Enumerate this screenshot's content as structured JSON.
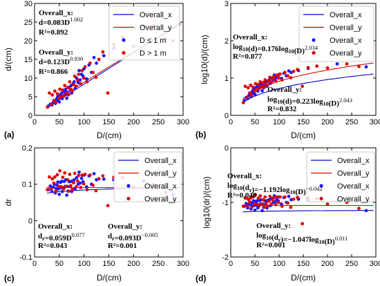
{
  "chart_data": [
    {
      "type": "scatter",
      "panel_label": "(a)",
      "xlabel": "D/(cm)",
      "ylabel": "d/(cm)",
      "xlim": [
        0,
        300
      ],
      "ylim": [
        0,
        30
      ],
      "xticks": [
        "0",
        "50",
        "100",
        "150",
        "200",
        "250",
        "300"
      ],
      "yticks": [
        "0",
        "5",
        "10",
        "15",
        "20",
        "25",
        "30"
      ],
      "legend": {
        "placement": "top-right",
        "entries": [
          "Overall_x",
          "Overall_y",
          "D ≤ 1 m",
          "D > 1 m"
        ]
      },
      "annotations": [
        {
          "lines": [
            {
              "text": "Overall_x:"
            },
            {
              "text": "d=0.083D",
              "sup": "1.002"
            },
            {
              "text": "R²=0.892"
            }
          ]
        },
        {
          "lines": [
            {
              "text": "Overall_y:"
            },
            {
              "text": "d=0.123D",
              "sup": "0.930"
            },
            {
              "text": "R²=0.866"
            }
          ]
        }
      ],
      "fit_lines": [
        {
          "name": "Overall_x",
          "color": "#0000cc",
          "model": "power",
          "a": 0.083,
          "b": 1.002
        },
        {
          "name": "Overall_y",
          "color": "#dd0000",
          "model": "power",
          "a": 0.123,
          "b": 0.93
        }
      ],
      "series": [
        {
          "name": "D ≤ 1 m",
          "color": "#1a1aff",
          "x": [
            28,
            32,
            35,
            38,
            40,
            42,
            44,
            45,
            47,
            48,
            50,
            52,
            53,
            55,
            56,
            58,
            60,
            62,
            63,
            65,
            66,
            68,
            70,
            72,
            74,
            75,
            78,
            80,
            82,
            85,
            88,
            90,
            92,
            95,
            98,
            100,
            105,
            110,
            115,
            120,
            125,
            140,
            160,
            220,
            280
          ],
          "y": [
            2.5,
            3.0,
            2.8,
            3.5,
            4.0,
            3.2,
            3.8,
            4.5,
            5.0,
            4.2,
            3.6,
            5.5,
            4.8,
            6.0,
            4.5,
            5.2,
            6.5,
            5.8,
            7.0,
            4.6,
            6.2,
            5.5,
            7.5,
            6.8,
            8.0,
            6.0,
            8.5,
            9.0,
            7.2,
            10.0,
            8.8,
            12.0,
            9.5,
            11.0,
            10.5,
            12.5,
            9.8,
            13.5,
            11.5,
            15.5,
            14.0,
            16.0,
            18.0,
            24.0,
            20.0
          ]
        },
        {
          "name": "D > 1 m",
          "color": "#e00000",
          "x": [
            26,
            30,
            34,
            36,
            39,
            41,
            43,
            46,
            49,
            51,
            54,
            57,
            59,
            61,
            64,
            67,
            69,
            71,
            73,
            76,
            79,
            81,
            84,
            87,
            89,
            93,
            96,
            99,
            102,
            106,
            112,
            118,
            124,
            130,
            138,
            148,
            160,
            178,
            200,
            240,
            265
          ],
          "y": [
            2.2,
            6.0,
            3.0,
            5.5,
            4.0,
            6.5,
            3.5,
            5.8,
            4.6,
            7.0,
            5.0,
            6.8,
            5.2,
            8.0,
            6.0,
            7.5,
            5.6,
            9.0,
            7.0,
            6.5,
            8.2,
            10.5,
            7.8,
            9.5,
            11.0,
            8.5,
            12.0,
            10.0,
            13.0,
            9.0,
            14.0,
            11.5,
            10.2,
            15.0,
            17.0,
            6.0,
            19.0,
            21.0,
            18.5,
            24.0,
            20.5
          ]
        }
      ]
    },
    {
      "type": "scatter",
      "panel_label": "(b)",
      "xlabel": "D/(cm)",
      "ylabel": "log10(d)/(cm)",
      "xlim": [
        0,
        300
      ],
      "ylim": [
        0,
        3
      ],
      "xticks": [
        "0",
        "50",
        "100",
        "150",
        "200",
        "250",
        "300"
      ],
      "yticks": [
        "0",
        "1",
        "2",
        "3"
      ],
      "legend": {
        "placement": "top-right",
        "entries": [
          "Overall_x",
          "Overall_y",
          "Overall_x",
          "Overall_y"
        ]
      },
      "annotations": [
        {
          "lines": [
            {
              "text": "Overall_x:"
            },
            {
              "text": "log10(d)=0.176log10(D)",
              "sup": "2.034"
            },
            {
              "text": "R²=0.877"
            }
          ]
        },
        {
          "lines": [
            {
              "text": "Overall_y:"
            },
            {
              "text": "log10(d)=0.223log10(D)",
              "sup": "2.043"
            },
            {
              "text": "R²=0.832"
            }
          ]
        }
      ],
      "fit_lines": [
        {
          "name": "Overall_x",
          "color": "#0000cc",
          "model": "loglog",
          "a": 0.176,
          "b": 2.034
        },
        {
          "name": "Overall_y",
          "color": "#dd0000",
          "model": "loglog",
          "a": 0.223,
          "b": 2.043
        }
      ],
      "series": [
        {
          "name": "Overall_x",
          "color": "#1a1aff",
          "x": [
            28,
            32,
            35,
            38,
            40,
            42,
            44,
            45,
            47,
            48,
            50,
            52,
            53,
            55,
            56,
            58,
            60,
            62,
            63,
            65,
            66,
            68,
            70,
            72,
            74,
            75,
            78,
            80,
            82,
            85,
            88,
            90,
            92,
            95,
            98,
            100,
            105,
            110,
            115,
            120,
            125,
            140,
            160,
            220,
            280
          ],
          "y": [
            0.4,
            0.48,
            0.45,
            0.54,
            0.6,
            0.5,
            0.58,
            0.65,
            0.7,
            0.62,
            0.56,
            0.74,
            0.68,
            0.78,
            0.65,
            0.72,
            0.81,
            0.76,
            0.85,
            0.66,
            0.79,
            0.74,
            0.88,
            0.83,
            0.9,
            0.78,
            0.93,
            0.95,
            0.86,
            1.0,
            0.94,
            1.08,
            0.98,
            1.04,
            1.02,
            1.1,
            0.99,
            1.13,
            1.06,
            1.19,
            1.15,
            1.2,
            1.26,
            1.38,
            1.3
          ]
        },
        {
          "name": "Overall_y",
          "color": "#e00000",
          "x": [
            26,
            30,
            34,
            36,
            39,
            41,
            43,
            46,
            49,
            51,
            54,
            57,
            59,
            61,
            64,
            67,
            69,
            71,
            73,
            76,
            79,
            81,
            84,
            87,
            89,
            93,
            96,
            99,
            102,
            106,
            112,
            118,
            124,
            130,
            138,
            148,
            160,
            178,
            200,
            240,
            265
          ],
          "y": [
            0.34,
            0.78,
            0.48,
            0.74,
            0.6,
            0.81,
            0.54,
            0.76,
            0.66,
            0.85,
            0.7,
            0.83,
            0.72,
            0.9,
            0.78,
            0.88,
            0.75,
            0.95,
            0.85,
            0.81,
            0.91,
            1.02,
            0.89,
            0.98,
            1.04,
            0.93,
            1.08,
            1.0,
            1.11,
            0.95,
            1.15,
            1.06,
            1.01,
            1.18,
            1.23,
            0.78,
            1.28,
            1.32,
            1.27,
            1.38,
            1.31
          ]
        }
      ]
    },
    {
      "type": "scatter",
      "panel_label": "(c)",
      "xlabel": "D/(cm)",
      "ylabel": "dr",
      "xlim": [
        0,
        300
      ],
      "ylim": [
        -0.1,
        0.2
      ],
      "xticks": [
        "0",
        "50",
        "100",
        "150",
        "200",
        "250",
        "300"
      ],
      "yticks": [
        "-0.1",
        "0",
        "0.1",
        "0.2"
      ],
      "legend": {
        "placement": "top-right",
        "entries": [
          "Overall_x",
          "Overall_y",
          "Overall_x",
          "Overall_y"
        ]
      },
      "annotations": [
        {
          "lines": [
            {
              "text": "Overall_x:"
            },
            {
              "text": "dr=0.059D",
              "sup": "0.077"
            },
            {
              "text": "R²=0.043"
            }
          ]
        },
        {
          "lines": [
            {
              "text": "Overall_y:"
            },
            {
              "text": "dr=0.093D",
              "sup": "−0.005"
            },
            {
              "text": "R²=0.001"
            }
          ]
        }
      ],
      "fit_lines": [
        {
          "name": "Overall_x",
          "color": "#0000cc",
          "model": "power",
          "a": 0.059,
          "b": 0.077
        },
        {
          "name": "Overall_y",
          "color": "#dd0000",
          "model": "power",
          "a": 0.093,
          "b": -0.005
        }
      ],
      "series": [
        {
          "name": "Overall_x",
          "color": "#1a1aff",
          "x": [
            28,
            32,
            35,
            38,
            40,
            42,
            44,
            45,
            47,
            48,
            50,
            52,
            53,
            55,
            56,
            58,
            60,
            62,
            63,
            65,
            66,
            68,
            70,
            72,
            74,
            75,
            78,
            80,
            82,
            85,
            88,
            90,
            92,
            95,
            98,
            100,
            105,
            110,
            115,
            120,
            125,
            140,
            160,
            220,
            280
          ],
          "y": [
            0.085,
            0.095,
            0.08,
            0.092,
            0.1,
            0.076,
            0.088,
            0.098,
            0.106,
            0.087,
            0.072,
            0.105,
            0.09,
            0.108,
            0.08,
            0.09,
            0.108,
            0.094,
            0.112,
            0.07,
            0.094,
            0.081,
            0.107,
            0.094,
            0.108,
            0.08,
            0.109,
            0.112,
            0.088,
            0.118,
            0.1,
            0.133,
            0.103,
            0.116,
            0.107,
            0.125,
            0.093,
            0.123,
            0.1,
            0.129,
            0.112,
            0.114,
            0.112,
            0.109,
            0.071
          ]
        },
        {
          "name": "Overall_y",
          "color": "#e00000",
          "x": [
            26,
            30,
            34,
            36,
            39,
            41,
            43,
            46,
            49,
            51,
            54,
            57,
            59,
            61,
            64,
            67,
            69,
            71,
            73,
            76,
            79,
            81,
            84,
            87,
            89,
            93,
            96,
            99,
            102,
            106,
            112,
            118,
            124,
            130,
            138,
            148,
            160,
            178,
            200,
            240,
            265
          ],
          "y": [
            0.085,
            0.12,
            0.088,
            0.115,
            0.103,
            0.12,
            0.081,
            0.126,
            0.094,
            0.137,
            0.093,
            0.119,
            0.088,
            0.131,
            0.094,
            0.112,
            0.081,
            0.127,
            0.096,
            0.086,
            0.104,
            0.13,
            0.093,
            0.109,
            0.124,
            0.091,
            0.125,
            0.101,
            0.127,
            0.085,
            0.125,
            0.097,
            0.082,
            0.115,
            0.123,
            0.041,
            0.119,
            0.118,
            0.093,
            0.1,
            0.077
          ]
        }
      ]
    },
    {
      "type": "scatter",
      "panel_label": "(d)",
      "xlabel": "D/(cm)",
      "ylabel": "log10(dr)/(cm)",
      "xlim": [
        0,
        300
      ],
      "ylim": [
        -2,
        0
      ],
      "xticks": [
        "0",
        "50",
        "100",
        "150",
        "200",
        "250",
        "300"
      ],
      "yticks": [
        "-2",
        "-1",
        "0"
      ],
      "legend": {
        "placement": "top-right",
        "entries": [
          "Overall_x",
          "Overall_y",
          "Overall_x",
          "Overall_y"
        ]
      },
      "annotations": [
        {
          "lines": [
            {
              "text": "Overall_x:"
            },
            {
              "text": "log10(dr)=−1.192log10(D)",
              "sup": "−0.042"
            },
            {
              "text": "R²=0.040"
            }
          ]
        },
        {
          "lines": [
            {
              "text": "Overall_y:"
            },
            {
              "text": "log10(dr)=−1.047log10(D)",
              "sup": "0.011"
            },
            {
              "text": "R²=0.001"
            }
          ]
        }
      ],
      "fit_lines": [
        {
          "name": "Overall_x",
          "color": "#0000cc",
          "model": "loglog",
          "a": -1.192,
          "b": -0.042
        },
        {
          "name": "Overall_y",
          "color": "#dd0000",
          "model": "loglog",
          "a": -1.047,
          "b": 0.011
        }
      ],
      "series": [
        {
          "name": "Overall_x",
          "color": "#1a1aff",
          "x": [
            28,
            32,
            35,
            38,
            40,
            42,
            44,
            45,
            47,
            48,
            50,
            52,
            53,
            55,
            56,
            58,
            60,
            62,
            63,
            65,
            66,
            68,
            70,
            72,
            74,
            75,
            78,
            80,
            82,
            85,
            88,
            90,
            92,
            95,
            98,
            100,
            105,
            110,
            115,
            120,
            125,
            140,
            160,
            220,
            280
          ],
          "y": [
            -1.07,
            -1.02,
            -1.1,
            -1.04,
            -1.0,
            -1.12,
            -1.06,
            -1.01,
            -0.97,
            -1.06,
            -1.14,
            -0.98,
            -1.05,
            -0.97,
            -1.1,
            -1.05,
            -0.97,
            -1.03,
            -0.95,
            -1.15,
            -1.03,
            -1.09,
            -0.97,
            -1.03,
            -0.97,
            -1.1,
            -0.96,
            -0.95,
            -1.06,
            -0.93,
            -1.0,
            -0.88,
            -0.99,
            -0.94,
            -0.97,
            -0.9,
            -1.03,
            -0.91,
            -1.0,
            -0.89,
            -0.95,
            -0.94,
            -0.95,
            -0.96,
            -1.15
          ]
        },
        {
          "name": "Overall_y",
          "color": "#e00000",
          "x": [
            26,
            30,
            34,
            36,
            39,
            41,
            43,
            46,
            49,
            51,
            54,
            57,
            59,
            61,
            64,
            67,
            69,
            71,
            73,
            76,
            79,
            81,
            84,
            87,
            89,
            93,
            96,
            99,
            102,
            106,
            112,
            118,
            124,
            130,
            138,
            148,
            160,
            178,
            200,
            240,
            265
          ],
          "y": [
            -1.07,
            -0.92,
            -1.06,
            -0.94,
            -0.99,
            -0.92,
            -1.09,
            -0.9,
            -1.03,
            -0.86,
            -1.03,
            -0.92,
            -1.06,
            -0.88,
            -1.03,
            -0.95,
            -1.09,
            -0.9,
            -1.02,
            -1.07,
            -0.98,
            -0.89,
            -1.03,
            -0.96,
            -0.91,
            -1.04,
            -0.9,
            -1.0,
            -0.9,
            -1.07,
            -0.9,
            -1.01,
            -1.09,
            -0.94,
            -0.91,
            -1.39,
            -0.92,
            -0.93,
            -1.03,
            -1.0,
            -1.11
          ]
        }
      ]
    }
  ]
}
